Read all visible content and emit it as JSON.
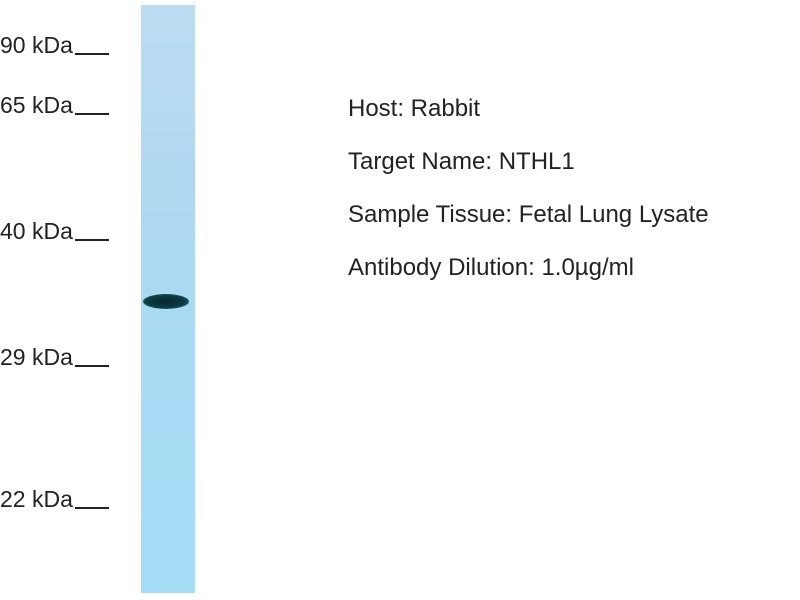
{
  "markers": [
    "90 kDa",
    "65 kDa",
    "40 kDa",
    "29 kDa",
    "22 kDa"
  ],
  "info": {
    "host": "Host: Rabbit",
    "target": "Target Name: NTHL1",
    "tissue": "Sample Tissue: Fetal Lung Lysate",
    "dilution": "Antibody Dilution: 1.0µg/ml"
  },
  "colors": {
    "lane": "#aed9f2",
    "band": "#0b3a42",
    "text": "#222222"
  }
}
